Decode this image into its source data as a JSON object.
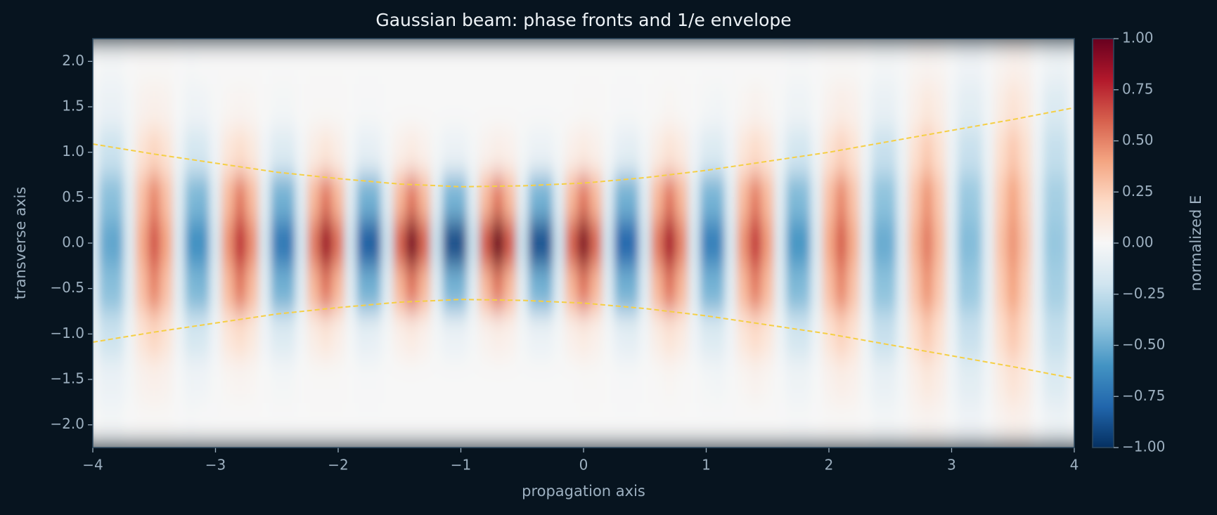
{
  "chart_data": {
    "type": "heatmap",
    "title": "Gaussian beam: phase fronts and 1/e envelope",
    "xlabel": "propagation axis",
    "ylabel": "transverse axis",
    "colorbar_label": "normalized E",
    "xlim": [
      -4,
      4
    ],
    "ylim": [
      -2.25,
      2.25
    ],
    "clim": [
      -1,
      1
    ],
    "xticks": [
      {
        "value": -4,
        "label": "−4"
      },
      {
        "value": -3,
        "label": "−3"
      },
      {
        "value": -2,
        "label": "−2"
      },
      {
        "value": -1,
        "label": "−1"
      },
      0,
      1,
      2,
      3,
      4
    ],
    "yticks": [
      {
        "value": -2,
        "label": "−2.0"
      },
      {
        "value": -1.5,
        "label": "−1.5"
      },
      {
        "value": -1,
        "label": "−1.0"
      },
      {
        "value": -0.5,
        "label": "−0.5"
      },
      {
        "value": 0,
        "label": "0.0"
      },
      0.5,
      {
        "value": 1,
        "label": "1.0"
      },
      1.5,
      {
        "value": 2,
        "label": "2.0"
      }
    ],
    "cticks": [
      {
        "value": -1,
        "label": "−1.00"
      },
      {
        "value": -0.75,
        "label": "−0.75"
      },
      {
        "value": -0.5,
        "label": "−0.50"
      },
      {
        "value": -0.25,
        "label": "−0.25"
      },
      {
        "value": 0,
        "label": "0.00"
      },
      0.25,
      {
        "value": 0.5,
        "label": "0.50"
      },
      0.75,
      {
        "value": 1,
        "label": "1.00"
      }
    ],
    "colormap": [
      "#053061",
      "#2166ac",
      "#4393c3",
      "#92c5de",
      "#d1e5f0",
      "#f7f7f7",
      "#fddbc7",
      "#f4a582",
      "#d6604d",
      "#b2182b",
      "#67001f"
    ],
    "x": [
      -4,
      -3.9,
      -3.8,
      -3.7,
      -3.6,
      -3.5,
      -3.4,
      -3.3,
      -3.2,
      -3.1,
      -3,
      -2.9,
      -2.8,
      -2.7,
      -2.6,
      -2.5,
      -2.4,
      -2.3,
      -2.2,
      -2.1,
      -2,
      -1.9,
      -1.8,
      -1.7,
      -1.6,
      -1.5,
      -1.4,
      -1.3,
      -1.2,
      -1.1,
      -1,
      -0.9,
      -0.8,
      -0.7,
      -0.6,
      -0.5,
      -0.4,
      -0.3,
      -0.2,
      -0.1,
      0,
      0.1,
      0.2,
      0.3,
      0.4,
      0.5,
      0.6,
      0.7,
      0.8,
      0.9,
      1,
      1.1,
      1.2,
      1.3,
      1.4,
      1.5,
      1.6,
      1.7,
      1.8,
      1.9,
      2,
      2.1,
      2.2,
      2.3,
      2.4,
      2.5,
      2.6,
      2.7,
      2.8,
      2.9,
      3,
      3.1,
      3.2,
      3.3,
      3.4,
      3.5,
      3.6,
      3.7,
      3.8,
      3.9,
      4
    ],
    "y": [
      -2,
      -1.5,
      -1,
      -0.5,
      0,
      0.5,
      1,
      1.5,
      2
    ],
    "z": [
      [
        0,
        -0.02,
        -0.02,
        0,
        0.01,
        0.01,
        0.01,
        0,
        -0.01,
        0,
        0,
        0,
        0,
        0,
        0,
        0,
        0,
        0,
        0,
        0,
        0,
        0,
        0,
        0,
        0,
        0,
        0,
        0,
        0,
        0,
        0,
        0,
        0,
        0,
        0,
        0,
        0,
        0,
        0,
        0,
        0,
        0,
        0,
        0,
        0,
        0,
        0,
        0,
        0,
        0,
        0,
        0,
        0,
        0,
        0,
        0,
        0,
        -0.01,
        -0.01,
        0,
        0.01,
        0.01,
        0.01,
        0,
        -0.02,
        -0.02,
        -0.01,
        0.02,
        0.03,
        0.02,
        -0.01,
        -0.04,
        -0.04,
        -0.01,
        0.03,
        0.05,
        0.04,
        -0.01,
        -0.05,
        -0.06,
        -0.02
      ],
      [
        -0.02,
        -0.07,
        -0.07,
        -0.02,
        0.04,
        0.06,
        0.04,
        -0.01,
        -0.05,
        -0.04,
        -0.01,
        0.02,
        0.03,
        0.02,
        0,
        -0.02,
        -0.02,
        0,
        0.01,
        0.01,
        0.01,
        0,
        -0.01,
        -0.01,
        0,
        0,
        0,
        0,
        0,
        0,
        0,
        0,
        0,
        0,
        0,
        0,
        0,
        0,
        0,
        0,
        0.01,
        0.01,
        0,
        -0.01,
        -0.01,
        0,
        0.01,
        0.02,
        0.01,
        0,
        -0.02,
        -0.03,
        -0.01,
        0.02,
        0.04,
        0.02,
        -0.01,
        -0.05,
        -0.05,
        -0.01,
        0.04,
        0.07,
        0.05,
        -0.02,
        -0.08,
        -0.08,
        -0.02,
        0.06,
        0.11,
        0.07,
        -0.03,
        -0.11,
        -0.11,
        -0.03,
        0.08,
        0.14,
        0.09,
        -0.03,
        -0.14,
        -0.14,
        -0.03
      ],
      [
        -0.06,
        -0.22,
        -0.22,
        -0.05,
        0.14,
        0.22,
        0.14,
        -0.05,
        -0.19,
        -0.18,
        -0.04,
        0.12,
        0.18,
        0.11,
        -0.04,
        -0.14,
        -0.14,
        -0.03,
        0.08,
        0.13,
        0.07,
        -0.02,
        -0.1,
        -0.09,
        -0.02,
        0.06,
        0.09,
        0.05,
        -0.02,
        -0.07,
        -0.07,
        -0.02,
        0.04,
        0.07,
        0.05,
        -0.02,
        -0.07,
        -0.07,
        -0.02,
        0.06,
        0.09,
        0.06,
        -0.02,
        -0.1,
        -0.11,
        -0.03,
        0.08,
        0.14,
        0.09,
        -0.04,
        -0.14,
        -0.15,
        -0.04,
        0.12,
        0.19,
        0.12,
        -0.05,
        -0.19,
        -0.2,
        -0.05,
        0.14,
        0.23,
        0.15,
        -0.05,
        -0.23,
        -0.23,
        -0.06,
        0.16,
        0.26,
        0.16,
        -0.06,
        -0.23,
        -0.23,
        -0.06,
        0.17,
        0.27,
        0.17,
        -0.06,
        -0.24,
        -0.24,
        -0.06
      ],
      [
        -0.1,
        -0.42,
        -0.42,
        -0.11,
        0.3,
        0.49,
        0.3,
        -0.11,
        -0.45,
        -0.46,
        -0.11,
        0.32,
        0.52,
        0.32,
        -0.11,
        -0.48,
        -0.48,
        -0.12,
        0.33,
        0.53,
        0.33,
        -0.12,
        -0.48,
        -0.48,
        -0.12,
        0.33,
        0.53,
        0.33,
        -0.11,
        -0.47,
        -0.47,
        -0.11,
        0.32,
        0.52,
        0.32,
        -0.11,
        -0.47,
        -0.48,
        -0.12,
        0.33,
        0.53,
        0.33,
        -0.12,
        -0.48,
        -0.48,
        -0.12,
        0.33,
        0.53,
        0.33,
        -0.12,
        -0.47,
        -0.47,
        -0.11,
        0.32,
        0.51,
        0.32,
        -0.11,
        -0.45,
        -0.44,
        -0.11,
        0.3,
        0.48,
        0.29,
        -0.1,
        -0.41,
        -0.41,
        -0.1,
        0.27,
        0.44,
        0.27,
        -0.09,
        -0.38,
        -0.37,
        -0.09,
        0.25,
        0.4,
        0.24,
        -0.09,
        -0.34,
        -0.34,
        -0.08
      ],
      [
        -0.13,
        -0.52,
        -0.53,
        -0.13,
        0.38,
        0.63,
        0.4,
        -0.15,
        -0.61,
        -0.62,
        -0.16,
        0.45,
        0.74,
        0.47,
        -0.17,
        -0.71,
        -0.73,
        -0.18,
        0.52,
        0.86,
        0.55,
        -0.2,
        -0.82,
        -0.84,
        -0.21,
        0.59,
        0.96,
        0.6,
        -0.22,
        -0.89,
        -0.9,
        -0.22,
        0.62,
        1,
        0.62,
        -0.22,
        -0.88,
        -0.87,
        -0.21,
        0.59,
        0.94,
        0.58,
        -0.2,
        -0.8,
        -0.79,
        -0.19,
        0.52,
        0.83,
        0.5,
        -0.17,
        -0.69,
        -0.68,
        -0.16,
        0.45,
        0.71,
        0.43,
        -0.15,
        -0.59,
        -0.59,
        -0.14,
        0.38,
        0.6,
        0.37,
        -0.13,
        -0.51,
        -0.5,
        -0.12,
        0.33,
        0.52,
        0.32,
        -0.11,
        -0.44,
        -0.43,
        -0.1,
        0.29,
        0.45,
        0.28,
        -0.1,
        -0.39,
        -0.38,
        -0.09
      ],
      [
        -0.1,
        -0.42,
        -0.42,
        -0.11,
        0.3,
        0.49,
        0.3,
        -0.11,
        -0.45,
        -0.46,
        -0.11,
        0.32,
        0.52,
        0.32,
        -0.11,
        -0.48,
        -0.48,
        -0.12,
        0.33,
        0.53,
        0.33,
        -0.12,
        -0.48,
        -0.48,
        -0.12,
        0.33,
        0.53,
        0.33,
        -0.11,
        -0.47,
        -0.47,
        -0.11,
        0.32,
        0.52,
        0.32,
        -0.11,
        -0.47,
        -0.48,
        -0.12,
        0.33,
        0.53,
        0.33,
        -0.12,
        -0.48,
        -0.48,
        -0.12,
        0.33,
        0.53,
        0.33,
        -0.12,
        -0.47,
        -0.47,
        -0.11,
        0.32,
        0.51,
        0.32,
        -0.11,
        -0.45,
        -0.44,
        -0.11,
        0.3,
        0.48,
        0.29,
        -0.1,
        -0.41,
        -0.41,
        -0.1,
        0.27,
        0.44,
        0.27,
        -0.09,
        -0.38,
        -0.37,
        -0.09,
        0.25,
        0.4,
        0.24,
        -0.09,
        -0.34,
        -0.34,
        -0.08
      ],
      [
        -0.06,
        -0.22,
        -0.22,
        -0.05,
        0.14,
        0.22,
        0.14,
        -0.05,
        -0.19,
        -0.18,
        -0.04,
        0.12,
        0.18,
        0.11,
        -0.04,
        -0.14,
        -0.14,
        -0.03,
        0.08,
        0.13,
        0.07,
        -0.02,
        -0.1,
        -0.09,
        -0.02,
        0.06,
        0.09,
        0.05,
        -0.02,
        -0.07,
        -0.07,
        -0.02,
        0.04,
        0.07,
        0.05,
        -0.02,
        -0.07,
        -0.07,
        -0.02,
        0.06,
        0.09,
        0.06,
        -0.02,
        -0.1,
        -0.11,
        -0.03,
        0.08,
        0.14,
        0.09,
        -0.04,
        -0.14,
        -0.15,
        -0.04,
        0.12,
        0.19,
        0.12,
        -0.05,
        -0.19,
        -0.2,
        -0.05,
        0.14,
        0.23,
        0.15,
        -0.05,
        -0.23,
        -0.23,
        -0.06,
        0.16,
        0.26,
        0.16,
        -0.06,
        -0.23,
        -0.23,
        -0.06,
        0.17,
        0.27,
        0.17,
        -0.06,
        -0.24,
        -0.24,
        -0.06
      ],
      [
        -0.02,
        -0.07,
        -0.07,
        -0.02,
        0.04,
        0.06,
        0.04,
        -0.01,
        -0.05,
        -0.04,
        -0.01,
        0.02,
        0.03,
        0.02,
        0,
        -0.02,
        -0.02,
        0,
        0.01,
        0.01,
        0.01,
        0,
        -0.01,
        -0.01,
        0,
        0,
        0,
        0,
        0,
        0,
        0,
        0,
        0,
        0,
        0,
        0,
        0,
        0,
        0,
        0,
        0.01,
        0.01,
        0,
        -0.01,
        -0.01,
        0,
        0.01,
        0.02,
        0.01,
        0,
        -0.02,
        -0.03,
        -0.01,
        0.02,
        0.04,
        0.02,
        -0.01,
        -0.05,
        -0.05,
        -0.01,
        0.04,
        0.07,
        0.05,
        -0.02,
        -0.08,
        -0.08,
        -0.02,
        0.06,
        0.11,
        0.07,
        -0.03,
        -0.11,
        -0.11,
        -0.03,
        0.08,
        0.14,
        0.09,
        -0.03,
        -0.14,
        -0.14,
        -0.03
      ],
      [
        0,
        -0.02,
        -0.02,
        0,
        0.01,
        0.01,
        0.01,
        0,
        -0.01,
        0,
        0,
        0,
        0,
        0,
        0,
        0,
        0,
        0,
        0,
        0,
        0,
        0,
        0,
        0,
        0,
        0,
        0,
        0,
        0,
        0,
        0,
        0,
        0,
        0,
        0,
        0,
        0,
        0,
        0,
        0,
        0,
        0,
        0,
        0,
        0,
        0,
        0,
        0,
        0,
        0,
        0,
        0,
        0,
        0,
        0,
        0,
        0,
        -0.01,
        -0.01,
        0,
        0.01,
        0.01,
        0.01,
        0,
        -0.02,
        -0.02,
        -0.01,
        0.02,
        0.03,
        0.02,
        -0.01,
        -0.04,
        -0.04,
        -0.01,
        0.03,
        0.05,
        0.04,
        -0.01,
        -0.05,
        -0.06,
        -0.02
      ]
    ],
    "envelope": {
      "color": "#f5cf45",
      "dashed": true,
      "x": [
        -4,
        -3.5,
        -3,
        -2.5,
        -2,
        -1.5,
        -1,
        -0.5,
        0,
        0.5,
        1,
        1.5,
        2,
        2.5,
        3,
        3.5,
        4
      ],
      "upper": [
        1.09,
        0.98,
        0.88,
        0.78,
        0.71,
        0.65,
        0.62,
        0.63,
        0.66,
        0.72,
        0.8,
        0.9,
        1,
        1.12,
        1.24,
        1.36,
        1.49
      ],
      "lower": [
        -1.09,
        -0.98,
        -0.88,
        -0.78,
        -0.71,
        -0.65,
        -0.62,
        -0.63,
        -0.66,
        -0.72,
        -0.8,
        -0.9,
        -1,
        -1.12,
        -1.24,
        -1.36,
        -1.49
      ]
    }
  }
}
